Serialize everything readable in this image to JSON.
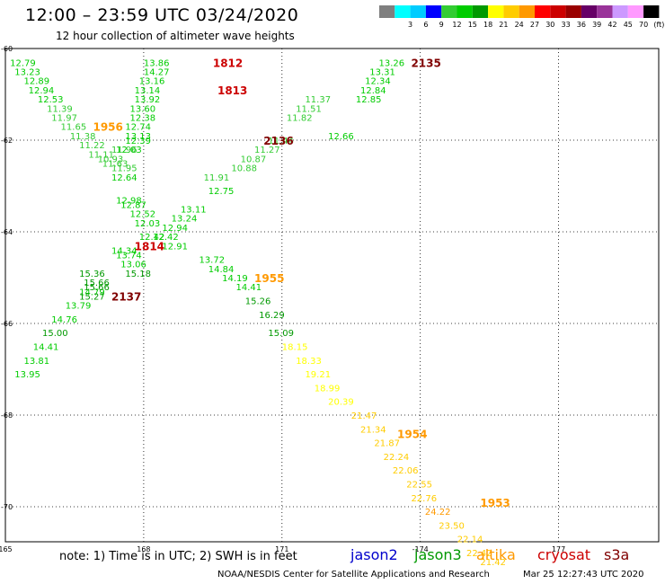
{
  "title": "12:00 – 23:59 UTC 03/24/2020",
  "subtitle": "12 hour collection of altimeter wave heights",
  "legend": {
    "bins": [
      {
        "label": "",
        "color": "#7f7f7f"
      },
      {
        "label": "3",
        "color": "#00ffff"
      },
      {
        "label": "6",
        "color": "#00ccff"
      },
      {
        "label": "9",
        "color": "#0000ff"
      },
      {
        "label": "12",
        "color": "#33cc33"
      },
      {
        "label": "15",
        "color": "#00cc00"
      },
      {
        "label": "18",
        "color": "#009900"
      },
      {
        "label": "21",
        "color": "#ffff00"
      },
      {
        "label": "24",
        "color": "#ffcc00"
      },
      {
        "label": "27",
        "color": "#ff9900"
      },
      {
        "label": "30",
        "color": "#ff0000"
      },
      {
        "label": "33",
        "color": "#cc0000"
      },
      {
        "label": "36",
        "color": "#990000"
      },
      {
        "label": "39",
        "color": "#660066"
      },
      {
        "label": "42",
        "color": "#993399"
      },
      {
        "label": "45",
        "color": "#cc99ff"
      },
      {
        "label": "70",
        "color": "#ff99ff"
      },
      {
        "label": "(ft)",
        "color": "#000000"
      }
    ]
  },
  "axes": {
    "lon_ticks": [
      "165",
      "168",
      "171",
      "-174",
      "177"
    ],
    "lat_ticks": [
      "-60",
      "-62",
      "-64",
      "-66",
      "-68",
      "-70"
    ]
  },
  "colors": {
    "jason2": "#0000cc",
    "jason3": "#009900",
    "altika": "#ff9900",
    "cryosat": "#cc0000",
    "s3a": "#800000"
  },
  "chart_data": {
    "type": "scatter",
    "units": "ft",
    "time_labels": [
      {
        "text": "1812",
        "lon": 169.5,
        "lat": -60.3,
        "satellite": "cryosat"
      },
      {
        "text": "1813",
        "lon": 169.6,
        "lat": -60.9,
        "satellite": "cryosat"
      },
      {
        "text": "2135",
        "lon": 173.8,
        "lat": -60.3,
        "satellite": "s3a"
      },
      {
        "text": "1956",
        "lon": 166.9,
        "lat": -61.7,
        "satellite": "altika"
      },
      {
        "text": "2136",
        "lon": 170.6,
        "lat": -62.0,
        "satellite": "s3a"
      },
      {
        "text": "1814",
        "lon": 167.8,
        "lat": -64.3,
        "satellite": "cryosat"
      },
      {
        "text": "1955",
        "lon": 170.4,
        "lat": -65.0,
        "satellite": "altika"
      },
      {
        "text": "2137",
        "lon": 167.3,
        "lat": -65.4,
        "satellite": "s3a"
      },
      {
        "text": "1954",
        "lon": 173.5,
        "lat": -68.4,
        "satellite": "altika"
      },
      {
        "text": "1953",
        "lon": 175.3,
        "lat": -69.9,
        "satellite": "altika"
      }
    ],
    "tracks": [
      {
        "satellite": "cryosat",
        "points": [
          {
            "lon": 168.0,
            "lat": -60.3,
            "swh": 13.86
          },
          {
            "lon": 168.0,
            "lat": -60.5,
            "swh": 14.27
          },
          {
            "lon": 167.9,
            "lat": -60.7,
            "swh": 13.16
          },
          {
            "lon": 167.8,
            "lat": -60.9,
            "swh": 13.14
          },
          {
            "lon": 167.8,
            "lat": -61.1,
            "swh": 13.92
          },
          {
            "lon": 167.7,
            "lat": -61.3,
            "swh": 13.6
          },
          {
            "lon": 167.7,
            "lat": -61.5,
            "swh": 12.38
          },
          {
            "lon": 167.6,
            "lat": -61.7,
            "swh": 12.74
          },
          {
            "lon": 167.6,
            "lat": -61.9,
            "swh": 13.13
          },
          {
            "lon": 167.6,
            "lat": -62.0,
            "swh": 12.39
          },
          {
            "lon": 167.4,
            "lat": -62.2,
            "swh": 12.03
          },
          {
            "lon": 167.3,
            "lat": -62.8,
            "swh": 12.64
          },
          {
            "lon": 167.4,
            "lat": -63.3,
            "swh": 12.98
          },
          {
            "lon": 167.5,
            "lat": -63.4,
            "swh": 12.87
          },
          {
            "lon": 167.7,
            "lat": -63.6,
            "swh": 12.52
          },
          {
            "lon": 167.8,
            "lat": -63.8,
            "swh": 12.03
          },
          {
            "lon": 167.9,
            "lat": -64.1,
            "swh": 12.42
          },
          {
            "lon": 167.3,
            "lat": -64.4,
            "swh": 14.34
          },
          {
            "lon": 167.4,
            "lat": -64.5,
            "swh": 13.74
          },
          {
            "lon": 167.5,
            "lat": -64.7,
            "swh": 13.06
          },
          {
            "lon": 167.6,
            "lat": -64.9,
            "swh": 15.18
          }
        ]
      },
      {
        "satellite": "s3a",
        "points": [
          {
            "lon": 173.1,
            "lat": -60.3,
            "swh": 13.26
          },
          {
            "lon": 172.9,
            "lat": -60.5,
            "swh": 13.31
          },
          {
            "lon": 172.8,
            "lat": -60.7,
            "swh": 12.34
          },
          {
            "lon": 172.7,
            "lat": -60.9,
            "swh": 12.84
          },
          {
            "lon": 172.6,
            "lat": -61.1,
            "swh": 12.85
          },
          {
            "lon": 172.0,
            "lat": -61.9,
            "swh": 12.66
          },
          {
            "lon": 169.4,
            "lat": -63.1,
            "swh": 12.75
          },
          {
            "lon": 168.8,
            "lat": -63.5,
            "swh": 13.11
          },
          {
            "lon": 168.6,
            "lat": -63.7,
            "swh": 13.24
          },
          {
            "lon": 168.4,
            "lat": -63.9,
            "swh": 12.94
          },
          {
            "lon": 168.2,
            "lat": -64.1,
            "swh": 12.42
          },
          {
            "lon": 168.4,
            "lat": -64.3,
            "swh": 12.91
          },
          {
            "lon": 166.6,
            "lat": -65.3,
            "swh": 14.79
          },
          {
            "lon": 166.3,
            "lat": -65.6,
            "swh": 13.79
          },
          {
            "lon": 166.0,
            "lat": -65.9,
            "swh": 14.76
          },
          {
            "lon": 165.8,
            "lat": -66.2,
            "swh": 15.0
          },
          {
            "lon": 165.6,
            "lat": -66.5,
            "swh": 14.41
          },
          {
            "lon": 165.4,
            "lat": -66.8,
            "swh": 13.81
          },
          {
            "lon": 165.2,
            "lat": -67.1,
            "swh": 13.95
          }
        ]
      },
      {
        "satellite": "jason2",
        "points": [
          {
            "lon": 165.1,
            "lat": -60.3,
            "swh": 12.79
          },
          {
            "lon": 165.2,
            "lat": -60.5,
            "swh": 13.23
          },
          {
            "lon": 165.4,
            "lat": -60.7,
            "swh": 12.89
          },
          {
            "lon": 165.5,
            "lat": -60.9,
            "swh": 12.94
          },
          {
            "lon": 165.7,
            "lat": -61.1,
            "swh": 12.53
          },
          {
            "lon": 165.9,
            "lat": -61.3,
            "swh": 11.39
          },
          {
            "lon": 166.0,
            "lat": -61.5,
            "swh": 11.97
          },
          {
            "lon": 166.2,
            "lat": -61.7,
            "swh": 11.65
          },
          {
            "lon": 166.4,
            "lat": -61.9,
            "swh": 11.38
          },
          {
            "lon": 166.6,
            "lat": -62.1,
            "swh": 11.22
          },
          {
            "lon": 166.8,
            "lat": -62.3,
            "swh": 11.11
          },
          {
            "lon": 167.0,
            "lat": -62.4,
            "swh": 10.93
          },
          {
            "lon": 167.1,
            "lat": -62.5,
            "swh": 11.63
          },
          {
            "lon": 167.3,
            "lat": -62.6,
            "swh": 11.95
          },
          {
            "lon": 167.3,
            "lat": -62.2,
            "swh": 11.96
          },
          {
            "lon": 171.5,
            "lat": -61.1,
            "swh": 11.37
          },
          {
            "lon": 171.3,
            "lat": -61.3,
            "swh": 11.51
          },
          {
            "lon": 171.1,
            "lat": -61.5,
            "swh": 11.82
          },
          {
            "lon": 170.7,
            "lat": -62.0,
            "swh": 11.44
          },
          {
            "lon": 170.4,
            "lat": -62.2,
            "swh": 11.27
          },
          {
            "lon": 170.1,
            "lat": -62.4,
            "swh": 10.87
          },
          {
            "lon": 169.9,
            "lat": -62.6,
            "swh": 10.88
          },
          {
            "lon": 169.3,
            "lat": -62.8,
            "swh": 11.91
          }
        ]
      },
      {
        "satellite": "jason3",
        "points": [
          {
            "lon": 169.2,
            "lat": -64.6,
            "swh": 13.72
          },
          {
            "lon": 169.4,
            "lat": -64.8,
            "swh": 14.84
          },
          {
            "lon": 169.7,
            "lat": -65.0,
            "swh": 14.19
          },
          {
            "lon": 170.0,
            "lat": -65.2,
            "swh": 14.41
          },
          {
            "lon": 170.2,
            "lat": -65.5,
            "swh": 15.26
          },
          {
            "lon": 170.5,
            "lat": -65.8,
            "swh": 16.29
          },
          {
            "lon": 170.7,
            "lat": -66.2,
            "swh": 15.09
          },
          {
            "lon": 171.0,
            "lat": -66.5,
            "swh": 18.15
          },
          {
            "lon": 171.3,
            "lat": -66.8,
            "swh": 18.33
          },
          {
            "lon": 171.5,
            "lat": -67.1,
            "swh": 19.21
          },
          {
            "lon": 171.7,
            "lat": -67.4,
            "swh": 18.99
          },
          {
            "lon": 172.0,
            "lat": -67.7,
            "swh": 20.39
          },
          {
            "lon": 166.6,
            "lat": -64.9,
            "swh": 15.36
          },
          {
            "lon": 166.7,
            "lat": -65.1,
            "swh": 15.66
          },
          {
            "lon": 166.7,
            "lat": -65.2,
            "swh": 15.66
          },
          {
            "lon": 166.6,
            "lat": -65.4,
            "swh": 15.27
          }
        ]
      },
      {
        "satellite": "altika",
        "points": [
          {
            "lon": 172.5,
            "lat": -68.0,
            "swh": 21.47
          },
          {
            "lon": 172.7,
            "lat": -68.3,
            "swh": 21.34
          },
          {
            "lon": 173.0,
            "lat": -68.6,
            "swh": 21.87
          },
          {
            "lon": 173.2,
            "lat": -68.9,
            "swh": 22.24
          },
          {
            "lon": 173.4,
            "lat": -69.2,
            "swh": 22.06
          },
          {
            "lon": 173.7,
            "lat": -69.5,
            "swh": 22.55
          },
          {
            "lon": 173.8,
            "lat": -69.8,
            "swh": 22.76
          },
          {
            "lon": 174.1,
            "lat": -70.1,
            "swh": 24.22
          },
          {
            "lon": 174.4,
            "lat": -70.4,
            "swh": 23.5
          },
          {
            "lon": 174.8,
            "lat": -70.7,
            "swh": 22.14
          },
          {
            "lon": 175.0,
            "lat": -71.0,
            "swh": 22.42
          },
          {
            "lon": 175.3,
            "lat": -71.2,
            "swh": 21.42
          }
        ]
      }
    ]
  },
  "note": "note:  1) Time is in UTC;  2) SWH is in feet",
  "satellites": [
    "jason2",
    "jason3",
    "altika",
    "cryosat",
    "s3a"
  ],
  "credit": "NOAA/NESDIS Center for Satellite Applications and Research",
  "timestamp": "Mar 25 12:27:43 UTC 2020"
}
